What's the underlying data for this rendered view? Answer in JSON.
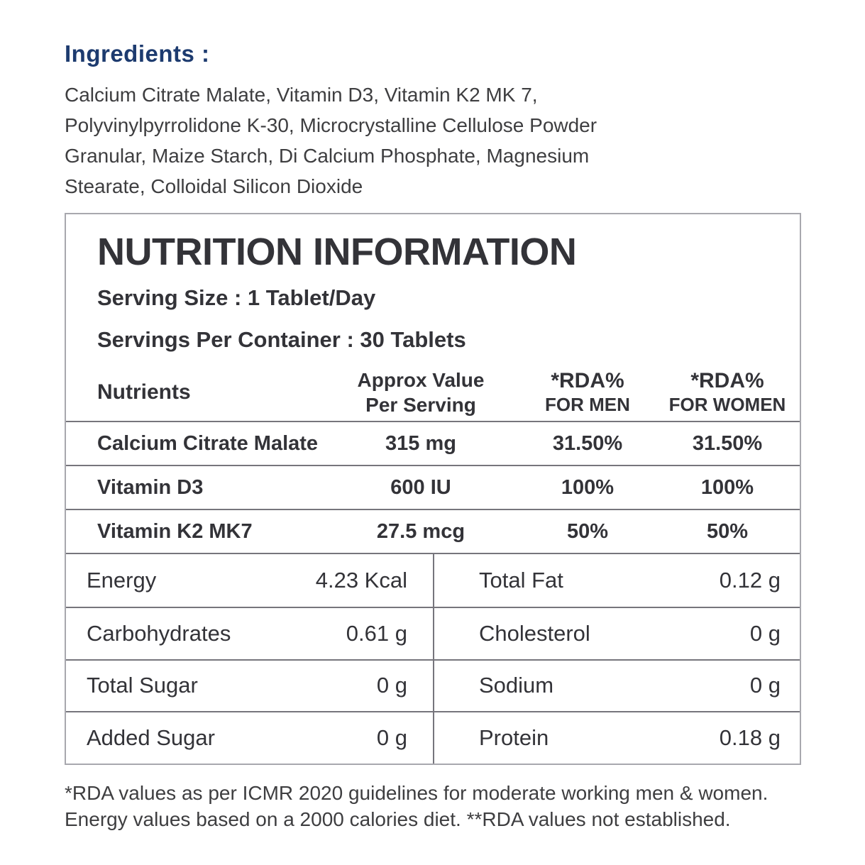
{
  "colors": {
    "heading_navy": "#1d3b6f",
    "text_dark": "#3e3e40",
    "border_gray": "#76757c"
  },
  "ingredients": {
    "heading": "Ingredients :",
    "lines": [
      "Calcium Citrate Malate, Vitamin D3, Vitamin K2 MK 7,",
      "Polyvinylpyrrolidone K-30, Microcrystalline Cellulose Powder",
      "Granular, Maize Starch, Di Calcium Phosphate, Magnesium",
      "Stearate, Colloidal Silicon Dioxide"
    ]
  },
  "nutrition": {
    "title": "NUTRITION INFORMATION",
    "serving_size": "Serving Size : 1 Tablet/Day",
    "servings_per_container": "Servings Per Container : 30 Tablets",
    "columns": [
      {
        "line1": "Nutrients"
      },
      {
        "line1": "Approx Value",
        "line2": "Per Serving"
      },
      {
        "line1": "*RDA%",
        "line2": "FOR MEN"
      },
      {
        "line1": "*RDA%",
        "line2": "FOR WOMEN"
      }
    ],
    "rows": [
      {
        "nutrient": "Calcium Citrate Malate",
        "value": "315 mg",
        "rda_men": "31.50%",
        "rda_women": "31.50%"
      },
      {
        "nutrient": "Vitamin D3",
        "value": "600 IU",
        "rda_men": "100%",
        "rda_women": "100%"
      },
      {
        "nutrient": "Vitamin K2 MK7",
        "value": "27.5 mcg",
        "rda_men": "50%",
        "rda_women": "50%"
      }
    ],
    "macros": [
      {
        "left": {
          "label": "Energy",
          "value": "4.23 Kcal"
        },
        "right": {
          "label": "Total Fat",
          "value": "0.12 g"
        }
      },
      {
        "left": {
          "label": "Carbohydrates",
          "value": "0.61 g"
        },
        "right": {
          "label": "Cholesterol",
          "value": "0 g"
        }
      },
      {
        "left": {
          "label": "Total Sugar",
          "value": "0 g"
        },
        "right": {
          "label": "Sodium",
          "value": "0 g"
        }
      },
      {
        "left": {
          "label": "Added Sugar",
          "value": "0 g"
        },
        "right": {
          "label": "Protein",
          "value": "0.18 g"
        }
      }
    ]
  },
  "footnote": {
    "lines": [
      "*RDA values as per ICMR 2020 guidelines for moderate working men & women.",
      "Energy values based on a 2000 calories diet. **RDA values not established."
    ]
  }
}
